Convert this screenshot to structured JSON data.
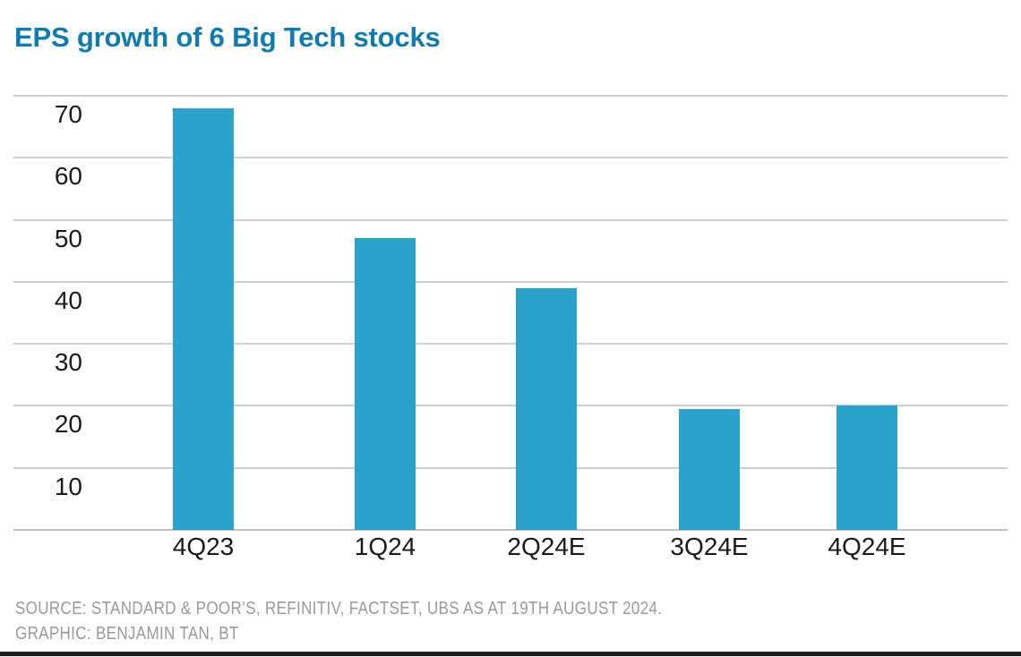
{
  "title": "EPS growth of 6 Big Tech stocks",
  "source_line1": "SOURCE: STANDARD & POOR’S, REFINITIV, FACTSET, UBS AS AT 19TH AUGUST 2024.",
  "source_line2": "GRAPHIC: BENJAMIN TAN, BT",
  "colors": {
    "background": "#FFFFFF",
    "title": "#0F7BAE",
    "bar": "#2CA2CA",
    "grid": "#CFCFCF",
    "baseline": "#BFBFBF",
    "tick_text": "#1A1A1A",
    "source_text": "#9A9A9A",
    "bottom_rule": "#1C1C1C"
  },
  "chart_data": {
    "type": "bar",
    "title": "EPS growth of 6 Big Tech stocks",
    "categories": [
      "4Q23",
      "1Q24",
      "2Q24E",
      "3Q24E",
      "4Q24E"
    ],
    "values": [
      68,
      47,
      39,
      19.5,
      20
    ],
    "xlabel": "",
    "ylabel": "",
    "yticks": [
      70,
      60,
      50,
      40,
      30,
      20,
      10
    ],
    "ylim": [
      0,
      75
    ],
    "grid": "horizontal-only",
    "legend": "none",
    "tick_label_style": "y labels placed below their gridlines, baseline unlabeled"
  }
}
